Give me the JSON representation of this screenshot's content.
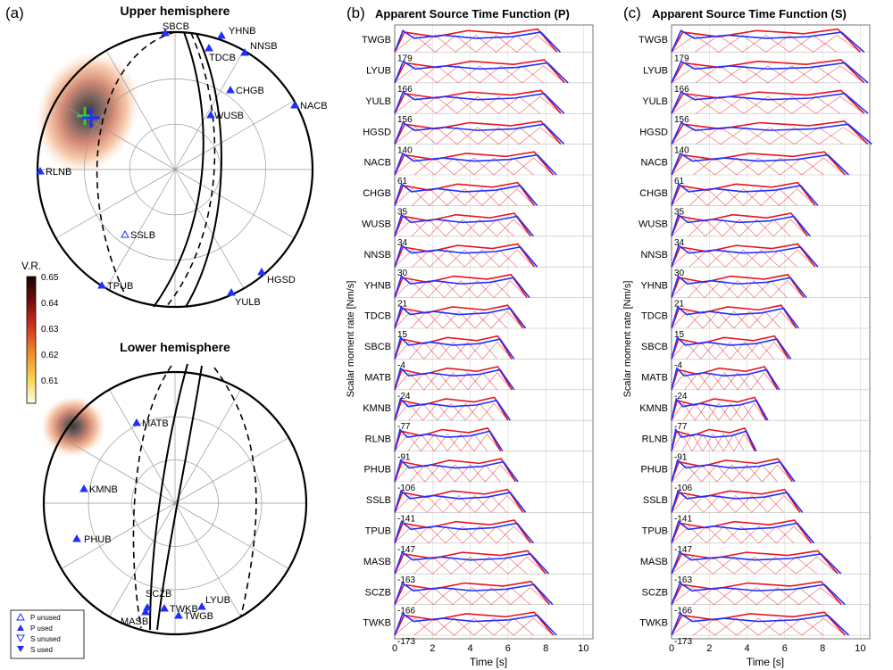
{
  "panel_a": {
    "label": "(a)",
    "upper_title": "Upper hemisphere",
    "lower_title": "Lower hemisphere",
    "colorbar": {
      "title": "V.R.",
      "ticks": [
        "0.65",
        "0.64",
        "0.63",
        "0.62",
        "0.61"
      ]
    },
    "upper_stations": [
      {
        "name": "SBCB",
        "sym": "P"
      },
      {
        "name": "YHNB",
        "sym": "P"
      },
      {
        "name": "TDCB",
        "sym": "P"
      },
      {
        "name": "NNSB",
        "sym": "P"
      },
      {
        "name": "CHGB",
        "sym": "P"
      },
      {
        "name": "NACB",
        "sym": "P"
      },
      {
        "name": "WUSB",
        "sym": "P"
      },
      {
        "name": "RLNB",
        "sym": "P"
      },
      {
        "name": "SSLB",
        "sym": "Pu"
      },
      {
        "name": "HGSD",
        "sym": "P"
      },
      {
        "name": "TPUB",
        "sym": "P"
      },
      {
        "name": "YULB",
        "sym": "P"
      }
    ],
    "lower_stations": [
      {
        "name": "MATB",
        "sym": "P"
      },
      {
        "name": "KMNB",
        "sym": "P"
      },
      {
        "name": "PHUB",
        "sym": "P"
      },
      {
        "name": "SCZB",
        "sym": "P"
      },
      {
        "name": "TWKB",
        "sym": "P"
      },
      {
        "name": "LYUB",
        "sym": "P"
      },
      {
        "name": "MASB",
        "sym": "P"
      },
      {
        "name": "TWGB",
        "sym": "P"
      }
    ],
    "legend": [
      "P unused",
      "P used",
      "S unused",
      "S used"
    ]
  },
  "panel_b": {
    "label": "(b)",
    "title": "Apparent Source Time Function (P)",
    "xlabel": "Time [s]",
    "ylabel": "Scalar moment rate [Nm/s]"
  },
  "panel_c": {
    "label": "(c)",
    "title": "Apparent Source Time Function (S)",
    "xlabel": "Time [s]",
    "ylabel": "Scalar moment rate [Nm/s]"
  },
  "chart_data": [
    {
      "type": "line",
      "title": "Apparent Source Time Function (P)",
      "xlabel": "Time [s]",
      "ylabel": "Scalar moment rate [Nm/s]",
      "xlim": [
        0,
        10.5
      ],
      "xticks": [
        0,
        2,
        4,
        6,
        8,
        10
      ],
      "stations": [
        "TWGB",
        "LYUB",
        "YULB",
        "HGSD",
        "NACB",
        "CHGB",
        "WUSB",
        "NNSB",
        "YHNB",
        "TDCB",
        "SBCB",
        "MATB",
        "KMNB",
        "RLNB",
        "PHUB",
        "SSLB",
        "TPUB",
        "MASB",
        "SCZB",
        "TWKB"
      ],
      "azimuths": [
        "179",
        "166",
        "156",
        "140",
        "61",
        "35",
        "34",
        "30",
        "21",
        "15",
        "-4",
        "-24",
        "-77",
        "-91",
        "-106",
        "-141",
        "-147",
        "-163",
        "-166",
        "-173"
      ],
      "durations": [
        8.6,
        9.0,
        8.8,
        8.8,
        8.4,
        7.4,
        7.2,
        7.4,
        7.0,
        6.8,
        6.2,
        6.2,
        6.0,
        5.6,
        6.4,
        6.8,
        7.2,
        8.0,
        8.2,
        8.4
      ],
      "series": [
        {
          "name": "",
          "color": "#1f2fff"
        },
        {
          "name": "",
          "color": "#e8141e"
        }
      ]
    },
    {
      "type": "line",
      "title": "Apparent Source Time Function (S)",
      "xlabel": "Time [s]",
      "ylabel": "Scalar moment rate [Nm/s]",
      "xlim": [
        0,
        10.5
      ],
      "xticks": [
        0,
        2,
        4,
        6,
        8,
        10
      ],
      "stations": [
        "TWGB",
        "LYUB",
        "YULB",
        "HGSD",
        "NACB",
        "CHGB",
        "WUSB",
        "NNSB",
        "YHNB",
        "TDCB",
        "SBCB",
        "MATB",
        "KMNB",
        "RLNB",
        "PHUB",
        "SSLB",
        "TPUB",
        "MASB",
        "SCZB",
        "TWKB"
      ],
      "azimuths": [
        "179",
        "166",
        "156",
        "140",
        "61",
        "35",
        "34",
        "30",
        "21",
        "15",
        "-4",
        "-24",
        "-77",
        "-91",
        "-106",
        "-141",
        "-147",
        "-163",
        "-166",
        "-173"
      ],
      "durations": [
        10.0,
        10.2,
        10.2,
        10.4,
        9.2,
        7.6,
        7.2,
        7.6,
        7.0,
        6.6,
        6.2,
        5.6,
        5.0,
        4.4,
        6.4,
        6.8,
        7.4,
        8.8,
        9.0,
        9.2
      ],
      "series": [
        {
          "name": "",
          "color": "#1f2fff"
        },
        {
          "name": "",
          "color": "#e8141e"
        }
      ]
    }
  ]
}
